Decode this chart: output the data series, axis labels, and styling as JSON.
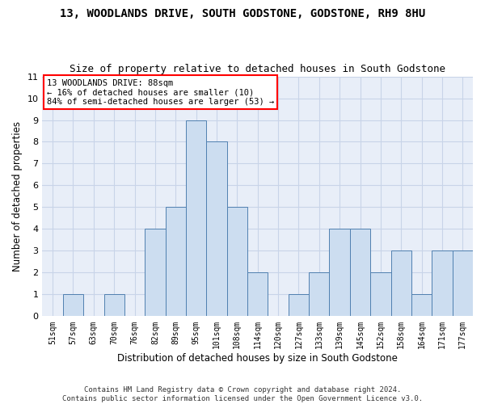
{
  "title": "13, WOODLANDS DRIVE, SOUTH GODSTONE, GODSTONE, RH9 8HU",
  "subtitle": "Size of property relative to detached houses in South Godstone",
  "xlabel": "Distribution of detached houses by size in South Godstone",
  "ylabel": "Number of detached properties",
  "bar_color": "#ccddf0",
  "bar_edge_color": "#5080b0",
  "categories": [
    "51sqm",
    "57sqm",
    "63sqm",
    "70sqm",
    "76sqm",
    "82sqm",
    "89sqm",
    "95sqm",
    "101sqm",
    "108sqm",
    "114sqm",
    "120sqm",
    "127sqm",
    "133sqm",
    "139sqm",
    "145sqm",
    "152sqm",
    "158sqm",
    "164sqm",
    "171sqm",
    "177sqm"
  ],
  "values": [
    0,
    1,
    0,
    1,
    0,
    4,
    5,
    9,
    8,
    5,
    2,
    0,
    1,
    2,
    4,
    4,
    2,
    3,
    1,
    3,
    3
  ],
  "ylim": [
    0,
    11
  ],
  "yticks": [
    0,
    1,
    2,
    3,
    4,
    5,
    6,
    7,
    8,
    9,
    10,
    11
  ],
  "annotation_text": "13 WOODLANDS DRIVE: 88sqm\n← 16% of detached houses are smaller (10)\n84% of semi-detached houses are larger (53) →",
  "grid_color": "#c8d4e8",
  "background_color": "#e8eef8",
  "footer": "Contains HM Land Registry data © Crown copyright and database right 2024.\nContains public sector information licensed under the Open Government Licence v3.0.",
  "title_fontsize": 10,
  "subtitle_fontsize": 9,
  "xlabel_fontsize": 8.5,
  "ylabel_fontsize": 8.5,
  "tick_fontsize": 7,
  "footer_fontsize": 6.5
}
